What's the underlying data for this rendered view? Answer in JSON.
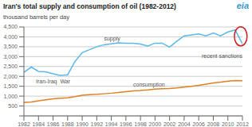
{
  "chart_data": {
    "type": "line",
    "title": "Iran's total supply and consumption of oil (1982-2012)",
    "y_label": "thousand barrels per day",
    "x": [
      1982,
      1983,
      1984,
      1985,
      1986,
      1987,
      1988,
      1989,
      1990,
      1991,
      1992,
      1993,
      1994,
      1995,
      1996,
      1997,
      1998,
      1999,
      2000,
      2001,
      2002,
      2003,
      2004,
      2005,
      2006,
      2007,
      2008,
      2009,
      2010,
      2011,
      2012
    ],
    "series": [
      {
        "name": "supply",
        "color": "#5bb8e8",
        "values": [
          2200,
          2470,
          2250,
          2230,
          2130,
          2050,
          2080,
          2750,
          3200,
          3350,
          3500,
          3600,
          3650,
          3700,
          3680,
          3680,
          3640,
          3540,
          3680,
          3680,
          3480,
          3780,
          4050,
          4100,
          4150,
          4050,
          4200,
          4050,
          4250,
          4350,
          3650
        ]
      },
      {
        "name": "consumption",
        "color": "#e08020",
        "values": [
          680,
          700,
          760,
          810,
          860,
          890,
          910,
          970,
          1040,
          1070,
          1090,
          1120,
          1150,
          1190,
          1230,
          1270,
          1290,
          1320,
          1360,
          1380,
          1390,
          1420,
          1460,
          1500,
          1550,
          1610,
          1670,
          1710,
          1760,
          1790,
          1780
        ]
      }
    ],
    "xlim": [
      1982,
      2012
    ],
    "xticks": [
      1982,
      1984,
      1986,
      1988,
      1990,
      1992,
      1994,
      1996,
      1998,
      2000,
      2002,
      2004,
      2006,
      2008,
      2010,
      2012
    ],
    "ylim": [
      0,
      4500
    ],
    "yticks": [
      {
        "value": 0,
        "label": ""
      },
      500,
      {
        "value": 1000,
        "label": "1,000"
      },
      {
        "value": 1500,
        "label": "1,500"
      },
      {
        "value": 2000,
        "label": "2,000"
      },
      {
        "value": 2500,
        "label": "2,500"
      },
      {
        "value": 3000,
        "label": "3,000"
      },
      {
        "value": 3500,
        "label": "3,500"
      },
      {
        "value": 4000,
        "label": "4,000"
      },
      {
        "value": 4500,
        "label": "4,500"
      }
    ],
    "grid": true,
    "annotations": [
      {
        "text": "Iran-Iraq  War"
      },
      {
        "text": "recent sanctions",
        "color": "#cc2222"
      },
      {
        "text": "eia",
        "color": "#3399cc"
      }
    ]
  }
}
